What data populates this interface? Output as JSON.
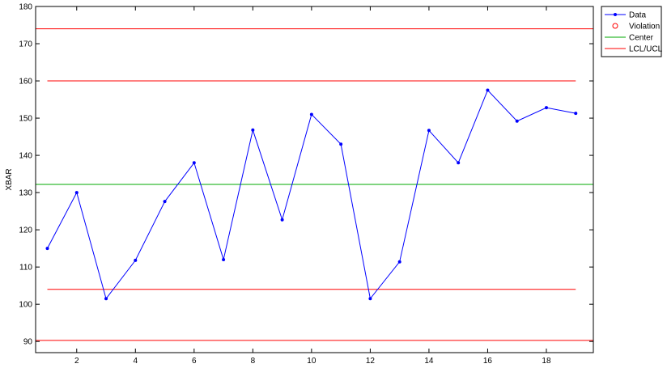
{
  "chart_data": {
    "type": "line",
    "xlabel": "",
    "ylabel": "XBAR",
    "xlim": [
      0.6,
      19.6
    ],
    "ylim": [
      87,
      180
    ],
    "xticks": [
      2,
      4,
      6,
      8,
      10,
      12,
      14,
      16,
      18
    ],
    "yticks": [
      90,
      100,
      110,
      120,
      130,
      140,
      150,
      160,
      170,
      180
    ],
    "grid": false,
    "legend_position": "top-right outside",
    "series": [
      {
        "name": "Data",
        "color": "#0000ff",
        "x": [
          1,
          2,
          3,
          4,
          5,
          6,
          7,
          8,
          9,
          10,
          11,
          12,
          13,
          14,
          15,
          16,
          17,
          18,
          19
        ],
        "values": [
          115.0,
          130.0,
          101.5,
          111.8,
          127.6,
          138.0,
          112.0,
          146.8,
          122.7,
          151.0,
          143.0,
          101.5,
          111.4,
          146.7,
          138.0,
          157.5,
          149.2,
          152.8,
          151.3
        ]
      },
      {
        "name": "Violation",
        "color": "#ff0000",
        "x": [],
        "values": []
      },
      {
        "name": "Center",
        "color": "#00aa00",
        "value": 132.2
      },
      {
        "name": "LCL/UCL",
        "color": "#ff0000",
        "value": 174.0,
        "x_range": [
          0.6,
          19.6
        ]
      },
      {
        "name": "",
        "color": "#ff0000",
        "value": 90.3,
        "x_range": [
          0.6,
          19.6
        ]
      },
      {
        "name": "",
        "color": "#ff0000",
        "value": 160.0,
        "x_range": [
          1,
          19
        ]
      },
      {
        "name": "",
        "color": "#ff0000",
        "value": 104.0,
        "x_range": [
          1,
          19
        ]
      }
    ]
  }
}
